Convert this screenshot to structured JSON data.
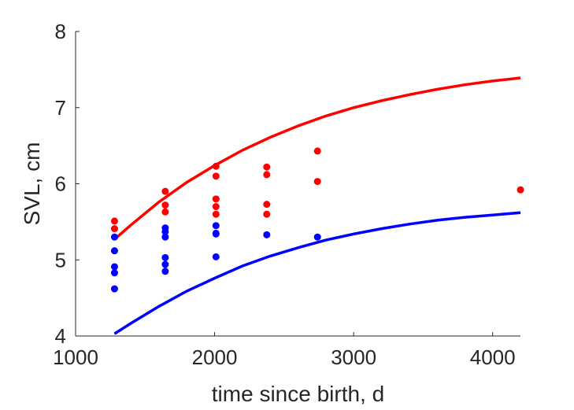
{
  "chart_data": {
    "type": "scatter",
    "title": "",
    "xlabel": "time since birth, d",
    "ylabel": "SVL, cm",
    "xlim": [
      1000,
      4200
    ],
    "ylim": [
      4,
      8
    ],
    "xticks": [
      1000,
      2000,
      3000,
      4000
    ],
    "yticks": [
      4,
      5,
      6,
      7,
      8
    ],
    "grid": false,
    "legend": "none",
    "series": [
      {
        "kind": "points",
        "color": "#ff0000",
        "x": [
          1280,
          1280,
          1645,
          1645,
          1645,
          2010,
          2010,
          2010,
          2010,
          2010,
          2375,
          2375,
          2375,
          2375,
          2740,
          2740,
          4200
        ],
        "y": [
          5.51,
          5.41,
          5.9,
          5.72,
          5.63,
          6.23,
          6.1,
          5.8,
          5.7,
          5.6,
          6.22,
          6.12,
          5.73,
          5.6,
          6.43,
          6.03,
          5.92
        ]
      },
      {
        "kind": "points",
        "color": "#0000ff",
        "x": [
          1280,
          1280,
          1280,
          1280,
          1280,
          1645,
          1645,
          1645,
          1645,
          1645,
          1645,
          2010,
          2010,
          2010,
          2010,
          2375,
          2740
        ],
        "y": [
          5.3,
          5.12,
          4.91,
          4.83,
          4.62,
          5.42,
          5.37,
          5.3,
          5.03,
          4.94,
          4.85,
          5.45,
          5.35,
          5.34,
          5.04,
          5.33,
          5.3
        ]
      },
      {
        "kind": "line",
        "color": "#ff0000",
        "x": [
          1280,
          1400,
          1600,
          1800,
          2000,
          2200,
          2400,
          2600,
          2800,
          3000,
          3200,
          3400,
          3600,
          3800,
          4000,
          4200
        ],
        "y": [
          5.27,
          5.46,
          5.76,
          6.02,
          6.24,
          6.44,
          6.61,
          6.76,
          6.89,
          7.0,
          7.09,
          7.17,
          7.24,
          7.3,
          7.35,
          7.39
        ]
      },
      {
        "kind": "line",
        "color": "#0000ff",
        "x": [
          1280,
          1400,
          1600,
          1800,
          2000,
          2200,
          2400,
          2600,
          2800,
          3000,
          3200,
          3400,
          3600,
          3800,
          4000,
          4200
        ],
        "y": [
          4.03,
          4.17,
          4.39,
          4.59,
          4.76,
          4.92,
          5.05,
          5.16,
          5.26,
          5.34,
          5.41,
          5.47,
          5.52,
          5.56,
          5.59,
          5.62
        ]
      }
    ]
  }
}
